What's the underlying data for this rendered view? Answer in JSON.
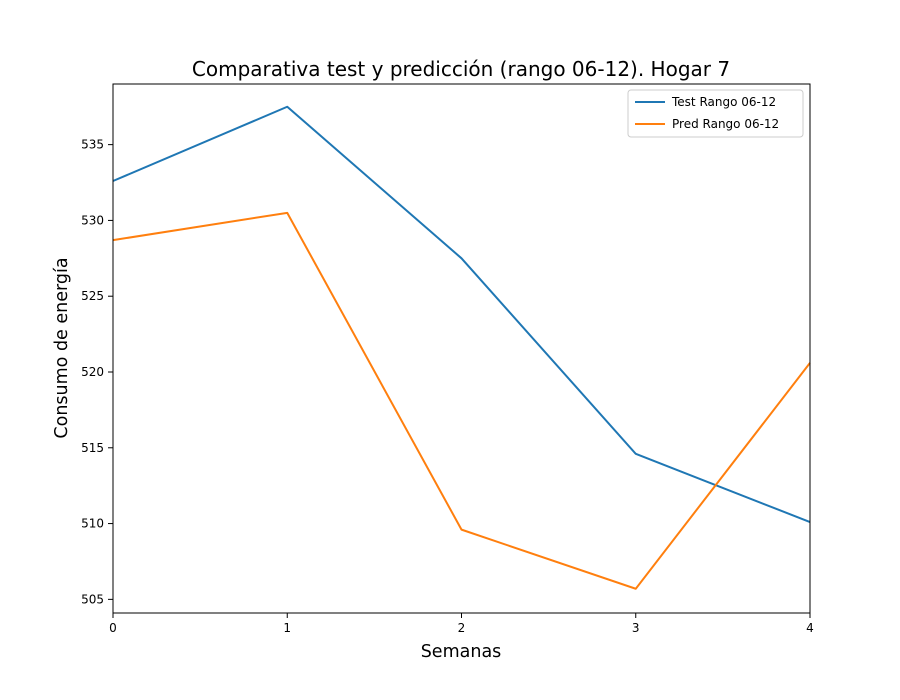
{
  "chart_data": {
    "type": "line",
    "title": "Comparativa test y predicción (rango 06-12). Hogar 7",
    "xlabel": "Semanas",
    "ylabel": "Consumo de energía",
    "x": [
      0,
      1,
      2,
      3,
      4
    ],
    "xlim": [
      0,
      4
    ],
    "ylim": [
      504.1,
      539.0
    ],
    "xticks": [
      "0",
      "1",
      "2",
      "3",
      "4"
    ],
    "yticks": [
      505,
      510,
      515,
      520,
      525,
      530,
      535
    ],
    "grid": false,
    "legend_position": "top-right",
    "series": [
      {
        "name": "Test Rango 06-12",
        "color": "#1f77b4",
        "values": [
          532.6,
          537.5,
          527.5,
          514.6,
          510.1
        ]
      },
      {
        "name": "Pred Rango 06-12",
        "color": "#ff7f0e",
        "values": [
          528.7,
          530.5,
          509.6,
          505.7,
          520.6
        ]
      }
    ]
  }
}
